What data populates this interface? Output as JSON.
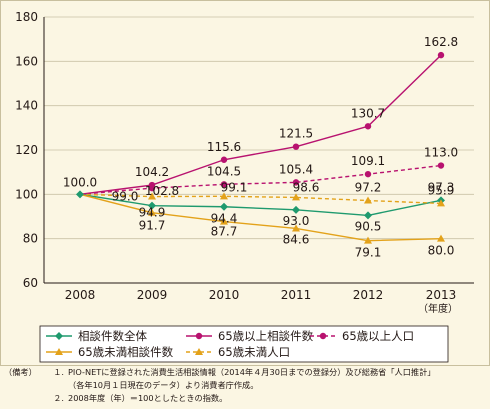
{
  "chart_data": {
    "type": "line",
    "categories": [
      "2008",
      "2009",
      "2010",
      "2011",
      "2012",
      "2013"
    ],
    "year_unit": "（年度）",
    "ylim": [
      60,
      180
    ],
    "yticks": [
      60,
      80,
      100,
      120,
      140,
      160,
      180
    ],
    "grid": "horizontal",
    "legend_placement": "bottom",
    "series": [
      {
        "name": "相談件数全体",
        "values": [
          100.0,
          94.9,
          94.4,
          93.0,
          90.5,
          97.3
        ],
        "labels": [
          "",
          "94.9",
          "94.4",
          "93.0",
          "90.5",
          "97.3"
        ],
        "color": "#1f9a6e",
        "marker": "diamond",
        "dashed": false
      },
      {
        "name": "65歳以上相談件数",
        "values": [
          100.0,
          104.2,
          115.6,
          121.5,
          130.7,
          162.8
        ],
        "labels": [
          "",
          "104.2",
          "115.6",
          "121.5",
          "130.7",
          "162.8"
        ],
        "color": "#b8126f",
        "marker": "circle",
        "dashed": false
      },
      {
        "name": "65歳以上人口",
        "values": [
          100.0,
          102.8,
          104.5,
          105.4,
          109.1,
          113.0
        ],
        "labels": [
          "",
          "102.8",
          "104.5",
          "105.4",
          "109.1",
          "113.0"
        ],
        "color": "#b8126f",
        "marker": "circle",
        "dashed": true
      },
      {
        "name": "65歳未満相談件数",
        "values": [
          100.0,
          91.7,
          87.7,
          84.6,
          79.1,
          80.0
        ],
        "labels": [
          "",
          "91.7",
          "87.7",
          "84.6",
          "79.1",
          "80.0"
        ],
        "color": "#e3a21a",
        "marker": "triangle",
        "dashed": false
      },
      {
        "name": "65歳未満人口",
        "values": [
          100.0,
          99.0,
          99.1,
          98.6,
          97.2,
          95.9
        ],
        "labels": [
          "",
          "99.0",
          "99.1",
          "98.6",
          "97.2",
          "95.9"
        ],
        "color": "#e3a21a",
        "marker": "triangle",
        "dashed": true
      }
    ],
    "start_label": "100.0"
  },
  "notes": {
    "head": "（備考）",
    "items": [
      "PIO-NETに登録された消費生活相談情報（2014年４月30日までの登録分）及び総務省「人口推計」",
      "2008年度（年）＝100としたときの指数。"
    ],
    "nums": [
      "１.",
      "２."
    ],
    "continuation": "（各年10月１日現在のデータ）より消費者庁作成。"
  }
}
